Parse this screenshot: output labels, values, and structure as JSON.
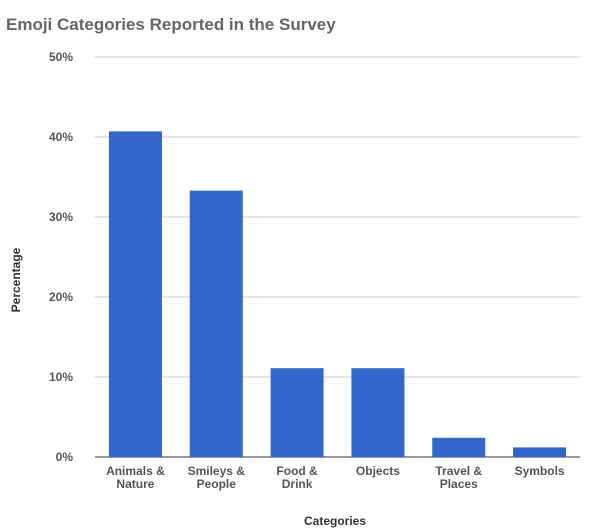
{
  "chart_data": {
    "type": "bar",
    "title": "Emoji Categories Reported in the Survey",
    "xlabel": "Categories",
    "ylabel": "Percentage",
    "categories": [
      [
        "Animals &",
        "Nature"
      ],
      [
        "Smileys &",
        "People"
      ],
      [
        "Food &",
        "Drink"
      ],
      [
        "Objects"
      ],
      [
        "Travel &",
        "Places"
      ],
      [
        "Symbols"
      ]
    ],
    "values": [
      40.7,
      33.3,
      11.1,
      11.1,
      2.4,
      1.2
    ],
    "ylim": [
      0,
      50
    ],
    "yticks": [
      "0%",
      "10%",
      "20%",
      "30%",
      "40%",
      "50%"
    ],
    "grid": true,
    "legend": "none",
    "bar_color": "#3366cc"
  }
}
